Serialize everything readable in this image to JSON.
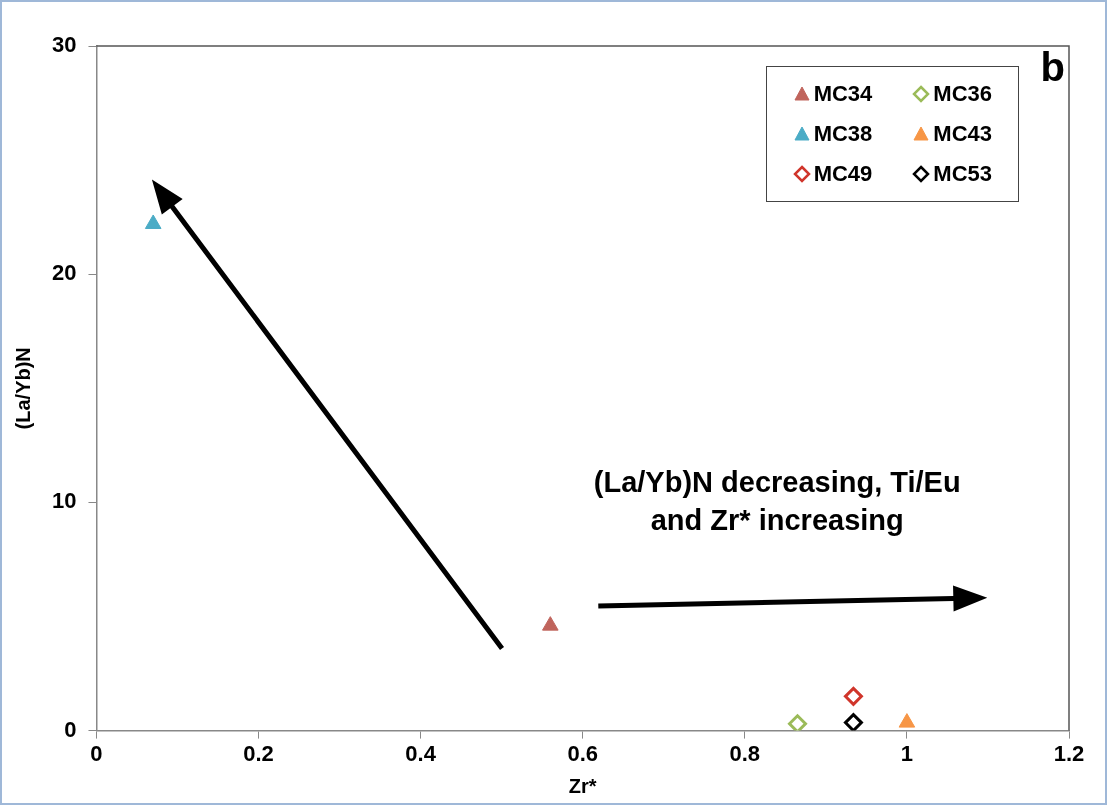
{
  "chart_data": {
    "type": "scatter",
    "xlabel": "Zr*",
    "ylabel": "(La/Yb)N",
    "xlim": [
      0,
      1.2
    ],
    "xticks": [
      0,
      0.2,
      0.4,
      0.6,
      0.8,
      1,
      1.2
    ],
    "ylim": [
      0,
      30
    ],
    "yticks": [
      0,
      10,
      20,
      30
    ],
    "grid": false,
    "legend": "top right",
    "annotations": [
      "(La/Yb)N decreasing, Ti/Eu and Zr* increasing",
      "b"
    ],
    "series": [
      {
        "name": "MC34",
        "color": "#c0645c",
        "marker": "triangle",
        "x": [
          0.56
        ],
        "values": [
          4.6
        ]
      },
      {
        "name": "MC36",
        "color": "#9bbb59",
        "marker": "diamond",
        "x": [
          0.865
        ],
        "values": [
          0.3
        ]
      },
      {
        "name": "MC38",
        "color": "#4bacc6",
        "marker": "triangle",
        "x": [
          0.07
        ],
        "values": [
          22.2
        ]
      },
      {
        "name": "MC43",
        "color": "#f79646",
        "marker": "triangle",
        "x": [
          1.0
        ],
        "values": [
          0.35
        ]
      },
      {
        "name": "MC49",
        "color": "#d0352b",
        "marker": "diamond",
        "x": [
          0.934
        ],
        "values": [
          1.5
        ]
      },
      {
        "name": "MC53",
        "color": "#000000",
        "marker": "diamond",
        "x": [
          0.934
        ],
        "values": [
          0.35
        ]
      }
    ]
  }
}
